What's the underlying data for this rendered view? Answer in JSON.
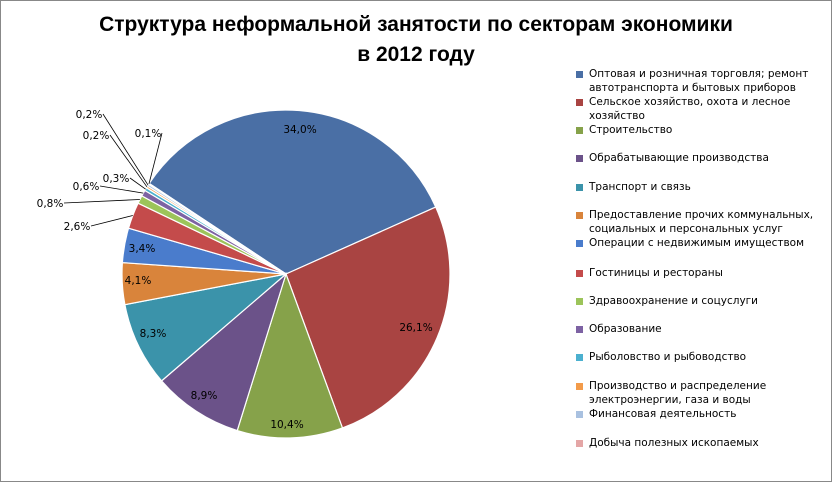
{
  "chart_data": {
    "type": "pie",
    "title": "Структура неформальной занятости по секторам экономики в 2012 году",
    "title_lines": [
      "Структура неформальной занятости по секторам экономики",
      "в 2012 году"
    ],
    "unit": "%",
    "legend_position": "right",
    "slices": [
      {
        "label": "Оптовая и розничная  торговля; ремонт автотранспорта и бытовых приборов",
        "value": 34.0,
        "display": "34,0%",
        "color": "#4a6fa5"
      },
      {
        "label": "Сельское хозяйство, охота и лесное хозяйство",
        "value": 26.1,
        "display": "26,1%",
        "color": "#a94442"
      },
      {
        "label": "Строительство",
        "value": 10.4,
        "display": "10,4%",
        "color": "#86a24a"
      },
      {
        "label": "Обрабатывающие производства",
        "value": 8.9,
        "display": "8,9%",
        "color": "#6b5289"
      },
      {
        "label": "Транспорт и связь",
        "value": 8.3,
        "display": "8,3%",
        "color": "#3b93aa"
      },
      {
        "label": "Предоставление прочих коммунальных, социальных и персональных услуг",
        "value": 4.1,
        "display": "4,1%",
        "color": "#d9843b"
      },
      {
        "label": "Операции с недвижимым  имуществом",
        "value": 3.4,
        "display": "3,4%",
        "color": "#4a7ccc"
      },
      {
        "label": "Гостиницы и рестораны",
        "value": 2.6,
        "display": "2,6%",
        "color": "#c44b4b"
      },
      {
        "label": "Здравоохранение  и соцуслуги",
        "value": 0.8,
        "display": "0,8%",
        "color": "#9cc45a"
      },
      {
        "label": "Образование",
        "value": 0.6,
        "display": "0,6%",
        "color": "#7d62a3"
      },
      {
        "label": "Рыболовство и рыбоводство",
        "value": 0.3,
        "display": "0,3%",
        "color": "#4bb0cf"
      },
      {
        "label": "Производство и распределение электроэнергии,  газа и воды",
        "value": 0.2,
        "display": "0,2%",
        "color": "#f39b4a"
      },
      {
        "label": "Финансовая  деятельность",
        "value": 0.2,
        "display": "0,2%",
        "color": "#a9c1e0"
      },
      {
        "label": "Добыча полезных ископаемых",
        "value": 0.1,
        "display": "0,1%",
        "color": "#e4a6a6"
      }
    ]
  }
}
